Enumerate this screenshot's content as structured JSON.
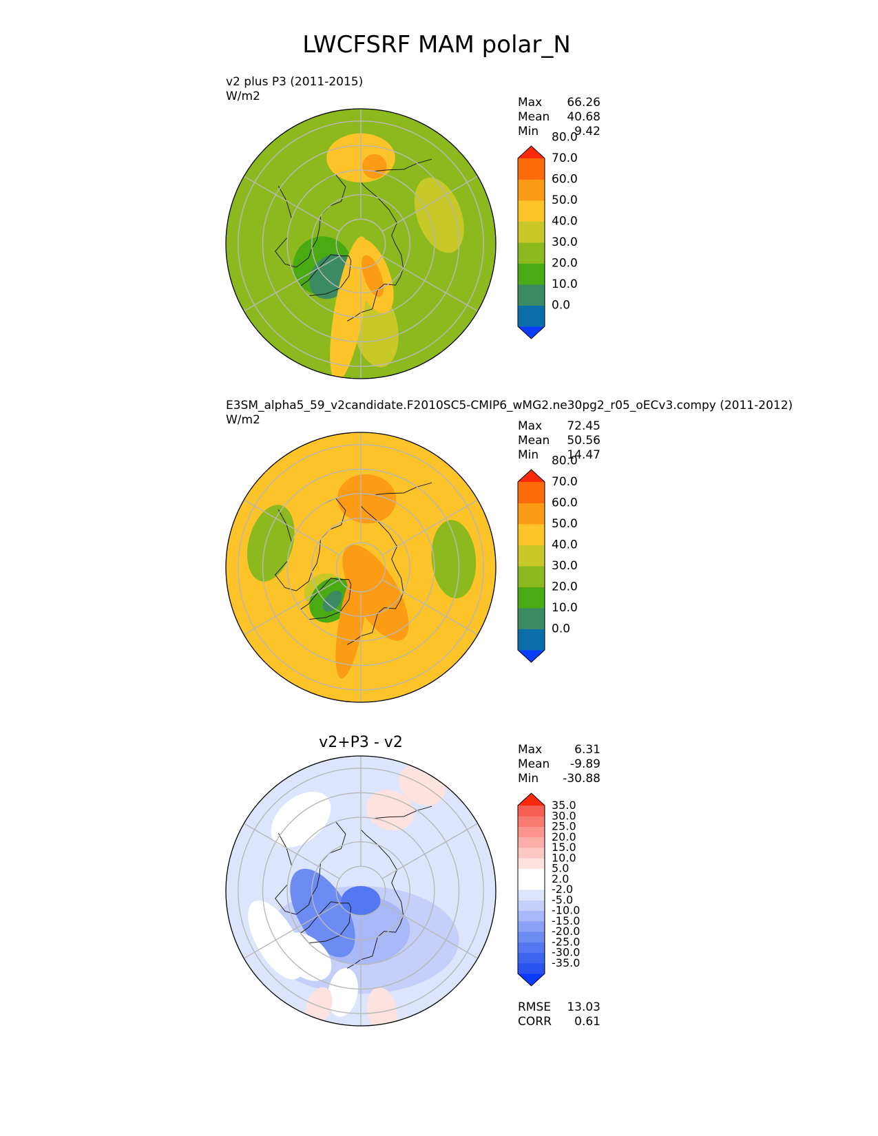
{
  "title": "LWCFSRF MAM polar_N",
  "chart_data": [
    {
      "type": "heatmap",
      "projection": "north-polar-stereographic",
      "subtitle": "v2 plus P3 (2011-2015)",
      "units": "W/m2",
      "stats": [
        {
          "label": "Max",
          "value": "66.26"
        },
        {
          "label": "Mean",
          "value": "40.68"
        },
        {
          "label": "Min",
          "value": "9.42"
        }
      ],
      "colorbar": {
        "colors": [
          "#0a3cff",
          "#0a6ea8",
          "#3c8a64",
          "#4aaa14",
          "#8cba1e",
          "#c8c828",
          "#fcc428",
          "#fc9c14",
          "#fc6a0a",
          "#fc2a0a"
        ],
        "ticks": [
          "0.0",
          "10.0",
          "20.0",
          "30.0",
          "40.0",
          "50.0",
          "60.0",
          "70.0",
          "80.0"
        ]
      },
      "field": {
        "background": "#8cba1e",
        "regions": [
          {
            "lon": 10,
            "lat": 55,
            "rx": 9,
            "ry": 16,
            "color": "#c8c828"
          },
          {
            "lon": -60,
            "lat": 72,
            "rx": 12,
            "ry": 12,
            "color": "#4aaa14"
          },
          {
            "lon": -42,
            "lat": 72,
            "rx": 8,
            "ry": 10,
            "color": "#3c8a64"
          },
          {
            "lon": -10,
            "lat": 63,
            "rx": 6,
            "ry": 30,
            "color": "#fcc428"
          },
          {
            "lon": 20,
            "lat": 76,
            "rx": 7,
            "ry": 16,
            "color": "#fcc428"
          },
          {
            "lon": 20,
            "lat": 76,
            "rx": 3.5,
            "ry": 9,
            "color": "#fc9c14"
          },
          {
            "lon": 110,
            "lat": 56,
            "rx": 16,
            "ry": 9,
            "color": "#c8c828"
          },
          {
            "lon": 180,
            "lat": 55,
            "rx": 14,
            "ry": 10,
            "color": "#fcc428"
          },
          {
            "lon": 170,
            "lat": 58,
            "rx": 5,
            "ry": 5,
            "color": "#fc9c14"
          }
        ]
      }
    },
    {
      "type": "heatmap",
      "projection": "north-polar-stereographic",
      "subtitle": "E3SM_alpha5_59_v2candidate.F2010SC5-CMIP6_wMG2.ne30pg2_r05_oECv3.compy (2011-2012)",
      "units": "W/m2",
      "stats": [
        {
          "label": "Max",
          "value": "72.45"
        },
        {
          "label": "Mean",
          "value": "50.56"
        },
        {
          "label": "Min",
          "value": "14.47"
        }
      ],
      "colorbar": {
        "colors": [
          "#0a3cff",
          "#0a6ea8",
          "#3c8a64",
          "#4aaa14",
          "#8cba1e",
          "#c8c828",
          "#fcc428",
          "#fc9c14",
          "#fc6a0a",
          "#fc2a0a"
        ],
        "ticks": [
          "0.0",
          "10.0",
          "20.0",
          "30.0",
          "40.0",
          "50.0",
          "60.0",
          "70.0",
          "80.0"
        ]
      },
      "field": {
        "background": "#fcc428",
        "regions": [
          {
            "lon": 95,
            "lat": 52,
            "rx": 16,
            "ry": 9,
            "color": "#8cba1e"
          },
          {
            "lon": -105,
            "lat": 52,
            "rx": 16,
            "ry": 9,
            "color": "#8cba1e"
          },
          {
            "lon": -60,
            "lat": 72,
            "rx": 6,
            "ry": 8,
            "color": "#c8c828"
          },
          {
            "lon": -42,
            "lat": 72,
            "rx": 8,
            "ry": 10,
            "color": "#4aaa14"
          },
          {
            "lon": -40,
            "lat": 72,
            "rx": 3,
            "ry": 5,
            "color": "#3c8a64"
          },
          {
            "lon": 30,
            "lat": 78,
            "rx": 9,
            "ry": 22,
            "color": "#fc9c14"
          },
          {
            "lon": -10,
            "lat": 68,
            "rx": 5,
            "ry": 24,
            "color": "#fc9c14"
          },
          {
            "lon": 175,
            "lat": 62,
            "rx": 12,
            "ry": 10,
            "color": "#fc9c14"
          }
        ]
      }
    },
    {
      "type": "heatmap",
      "projection": "north-polar-stereographic",
      "subtitle": "v2+P3 - v2",
      "units": "",
      "stats": [
        {
          "label": "Max",
          "value": "6.31"
        },
        {
          "label": "Mean",
          "value": "-9.89"
        },
        {
          "label": "Min",
          "value": "-30.88"
        }
      ],
      "colorbar": {
        "colors": [
          "#0a3cff",
          "#2a52f0",
          "#3c64ee",
          "#5478f2",
          "#6c8cf4",
          "#8aa2f6",
          "#a8b8f8",
          "#c4d0fa",
          "#dde5fd",
          "#ffffff",
          "#ffffff",
          "#fde2e0",
          "#fcc8c4",
          "#fbaea8",
          "#fa948c",
          "#f87a70",
          "#f65e54",
          "#fc2a0a"
        ],
        "ticks": [
          "-35.0",
          "-30.0",
          "-25.0",
          "-20.0",
          "-15.0",
          "-10.0",
          "-5.0",
          "-2.0",
          "2.0",
          "5.0",
          "10.0",
          "15.0",
          "20.0",
          "25.0",
          "30.0",
          "35.0"
        ]
      },
      "stats2": [
        {
          "label": "RMSE",
          "value": "13.03"
        },
        {
          "label": "CORR",
          "value": "0.61"
        }
      ],
      "field": {
        "background": "#dde5fd",
        "regions": [
          {
            "lon": 0,
            "lat": 70,
            "rx": 40,
            "ry": 22,
            "color": "#c4d0fa"
          },
          {
            "lon": 0,
            "lat": 74,
            "rx": 20,
            "ry": 14,
            "color": "#a8b8f8"
          },
          {
            "lon": -60,
            "lat": 72,
            "rx": 20,
            "ry": 10,
            "color": "#6c8cf4"
          },
          {
            "lon": 0,
            "lat": 86,
            "rx": 8,
            "ry": 6,
            "color": "#5478f2"
          },
          {
            "lon": -40,
            "lat": 55,
            "rx": 12,
            "ry": 8,
            "color": "#ffffff"
          },
          {
            "lon": -10,
            "lat": 48,
            "rx": 6,
            "ry": 10,
            "color": "#ffffff"
          },
          {
            "lon": 10,
            "lat": 40,
            "rx": 6,
            "ry": 10,
            "color": "#fde2e0"
          },
          {
            "lon": -20,
            "lat": 40,
            "rx": 5,
            "ry": 8,
            "color": "#fde2e0"
          },
          {
            "lon": 150,
            "lat": 40,
            "rx": 10,
            "ry": 8,
            "color": "#fde2e0"
          },
          {
            "lon": -140,
            "lat": 52,
            "rx": 14,
            "ry": 9,
            "color": "#ffffff"
          },
          {
            "lon": 160,
            "lat": 55,
            "rx": 10,
            "ry": 8,
            "color": "#fde2e0"
          },
          {
            "lon": -60,
            "lat": 50,
            "rx": 18,
            "ry": 8,
            "color": "#ffffff"
          }
        ]
      }
    }
  ]
}
